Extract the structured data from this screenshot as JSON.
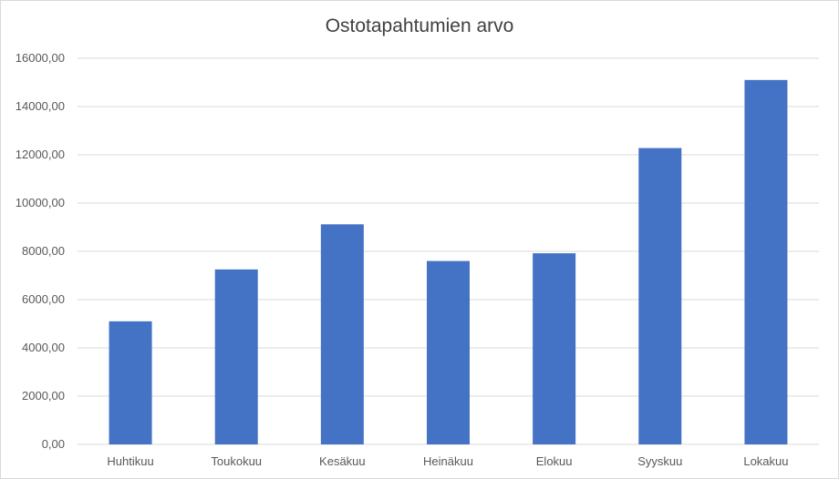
{
  "chart_data": {
    "type": "bar",
    "title": "Ostotapahtumien arvo",
    "categories": [
      "Huhtikuu",
      "Toukokuu",
      "Kesäkuu",
      "Heinäkuu",
      "Elokuu",
      "Syyskuu",
      "Lokakuu"
    ],
    "values": [
      5100,
      7250,
      9120,
      7600,
      7920,
      12280,
      15100
    ],
    "ylim": [
      0,
      16000
    ],
    "yticks": [
      "0,00",
      "2000,00",
      "4000,00",
      "6000,00",
      "8000,00",
      "10000,00",
      "12000,00",
      "14000,00",
      "16000,00"
    ],
    "xlabel": "",
    "ylabel": "",
    "grid": true,
    "legend": "none",
    "colors": {
      "bar": "#4472C4",
      "grid": "#d9d9d9",
      "axis_text": "#595959",
      "title": "#404040"
    }
  }
}
